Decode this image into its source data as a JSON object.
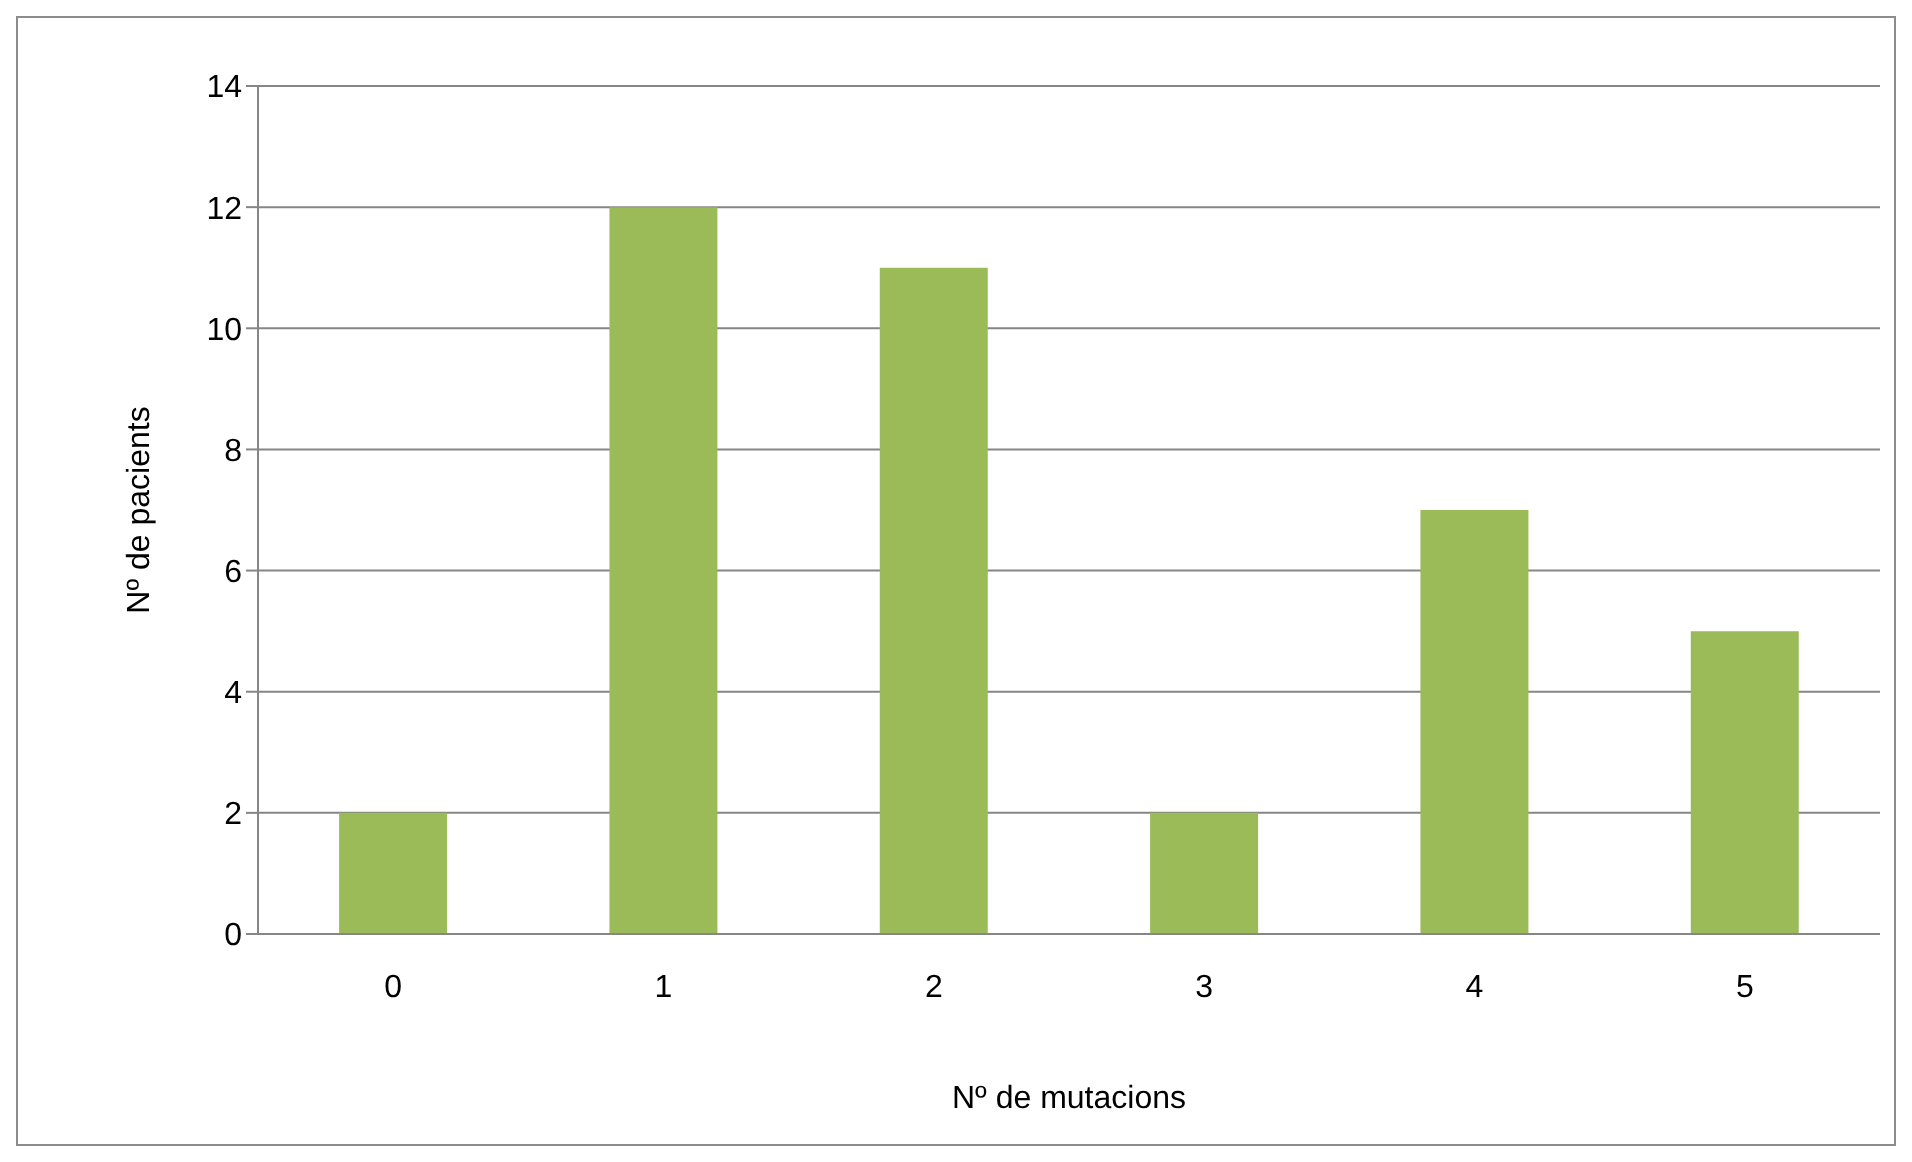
{
  "chart_data": {
    "type": "bar",
    "xlabel": "Nº de mutacions",
    "ylabel": "Nº de pacients",
    "categories": [
      "0",
      "1",
      "2",
      "3",
      "4",
      "5"
    ],
    "values": [
      2,
      12,
      11,
      2,
      7,
      5
    ],
    "color": "#9bbb59",
    "ylim": [
      0,
      14
    ],
    "yticks": [
      0,
      2,
      4,
      6,
      8,
      10,
      12,
      14
    ],
    "grid": "y"
  }
}
